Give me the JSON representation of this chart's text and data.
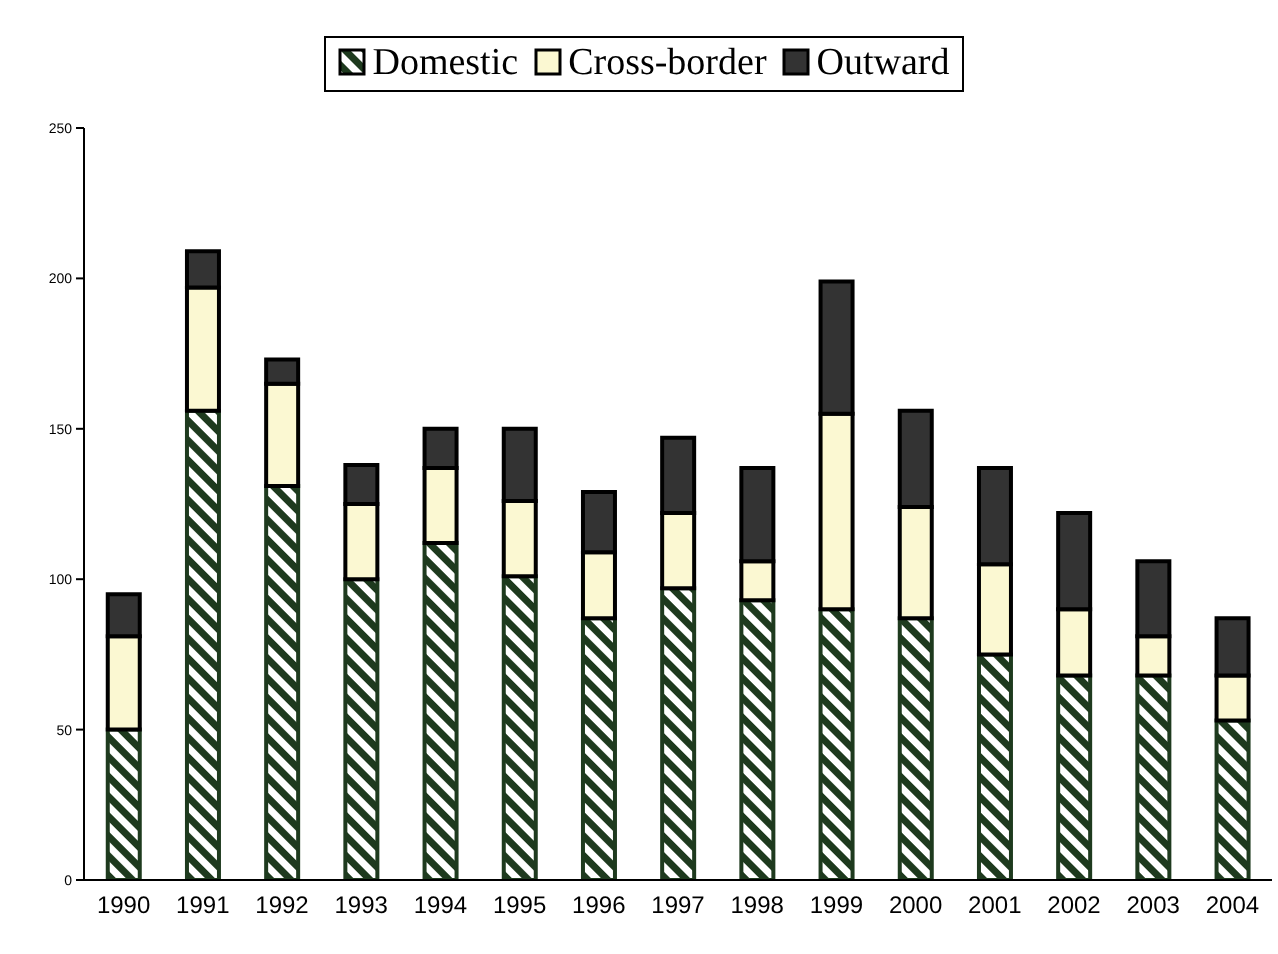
{
  "chart_data": {
    "type": "bar",
    "stacked": true,
    "categories": [
      "1990",
      "1991",
      "1992",
      "1993",
      "1994",
      "1995",
      "1996",
      "1997",
      "1998",
      "1999",
      "2000",
      "2001",
      "2002",
      "2003",
      "2004"
    ],
    "series": [
      {
        "name": "Domestic",
        "color": "#1e3a1e",
        "values": [
          50,
          156,
          131,
          100,
          112,
          101,
          87,
          97,
          93,
          90,
          87,
          75,
          68,
          68,
          53
        ]
      },
      {
        "name": "Cross-border",
        "color": "#fbf8d2",
        "values": [
          31,
          41,
          34,
          25,
          25,
          25,
          22,
          25,
          13,
          65,
          37,
          30,
          22,
          13,
          15
        ]
      },
      {
        "name": "Outward",
        "color": "#333333",
        "values": [
          14,
          12,
          8,
          13,
          13,
          24,
          20,
          25,
          31,
          44,
          32,
          32,
          32,
          25,
          19
        ]
      }
    ],
    "ylim": [
      0,
      250
    ],
    "yticks": [
      0,
      50,
      100,
      150,
      200,
      250
    ],
    "grid": false,
    "legend": "top"
  }
}
